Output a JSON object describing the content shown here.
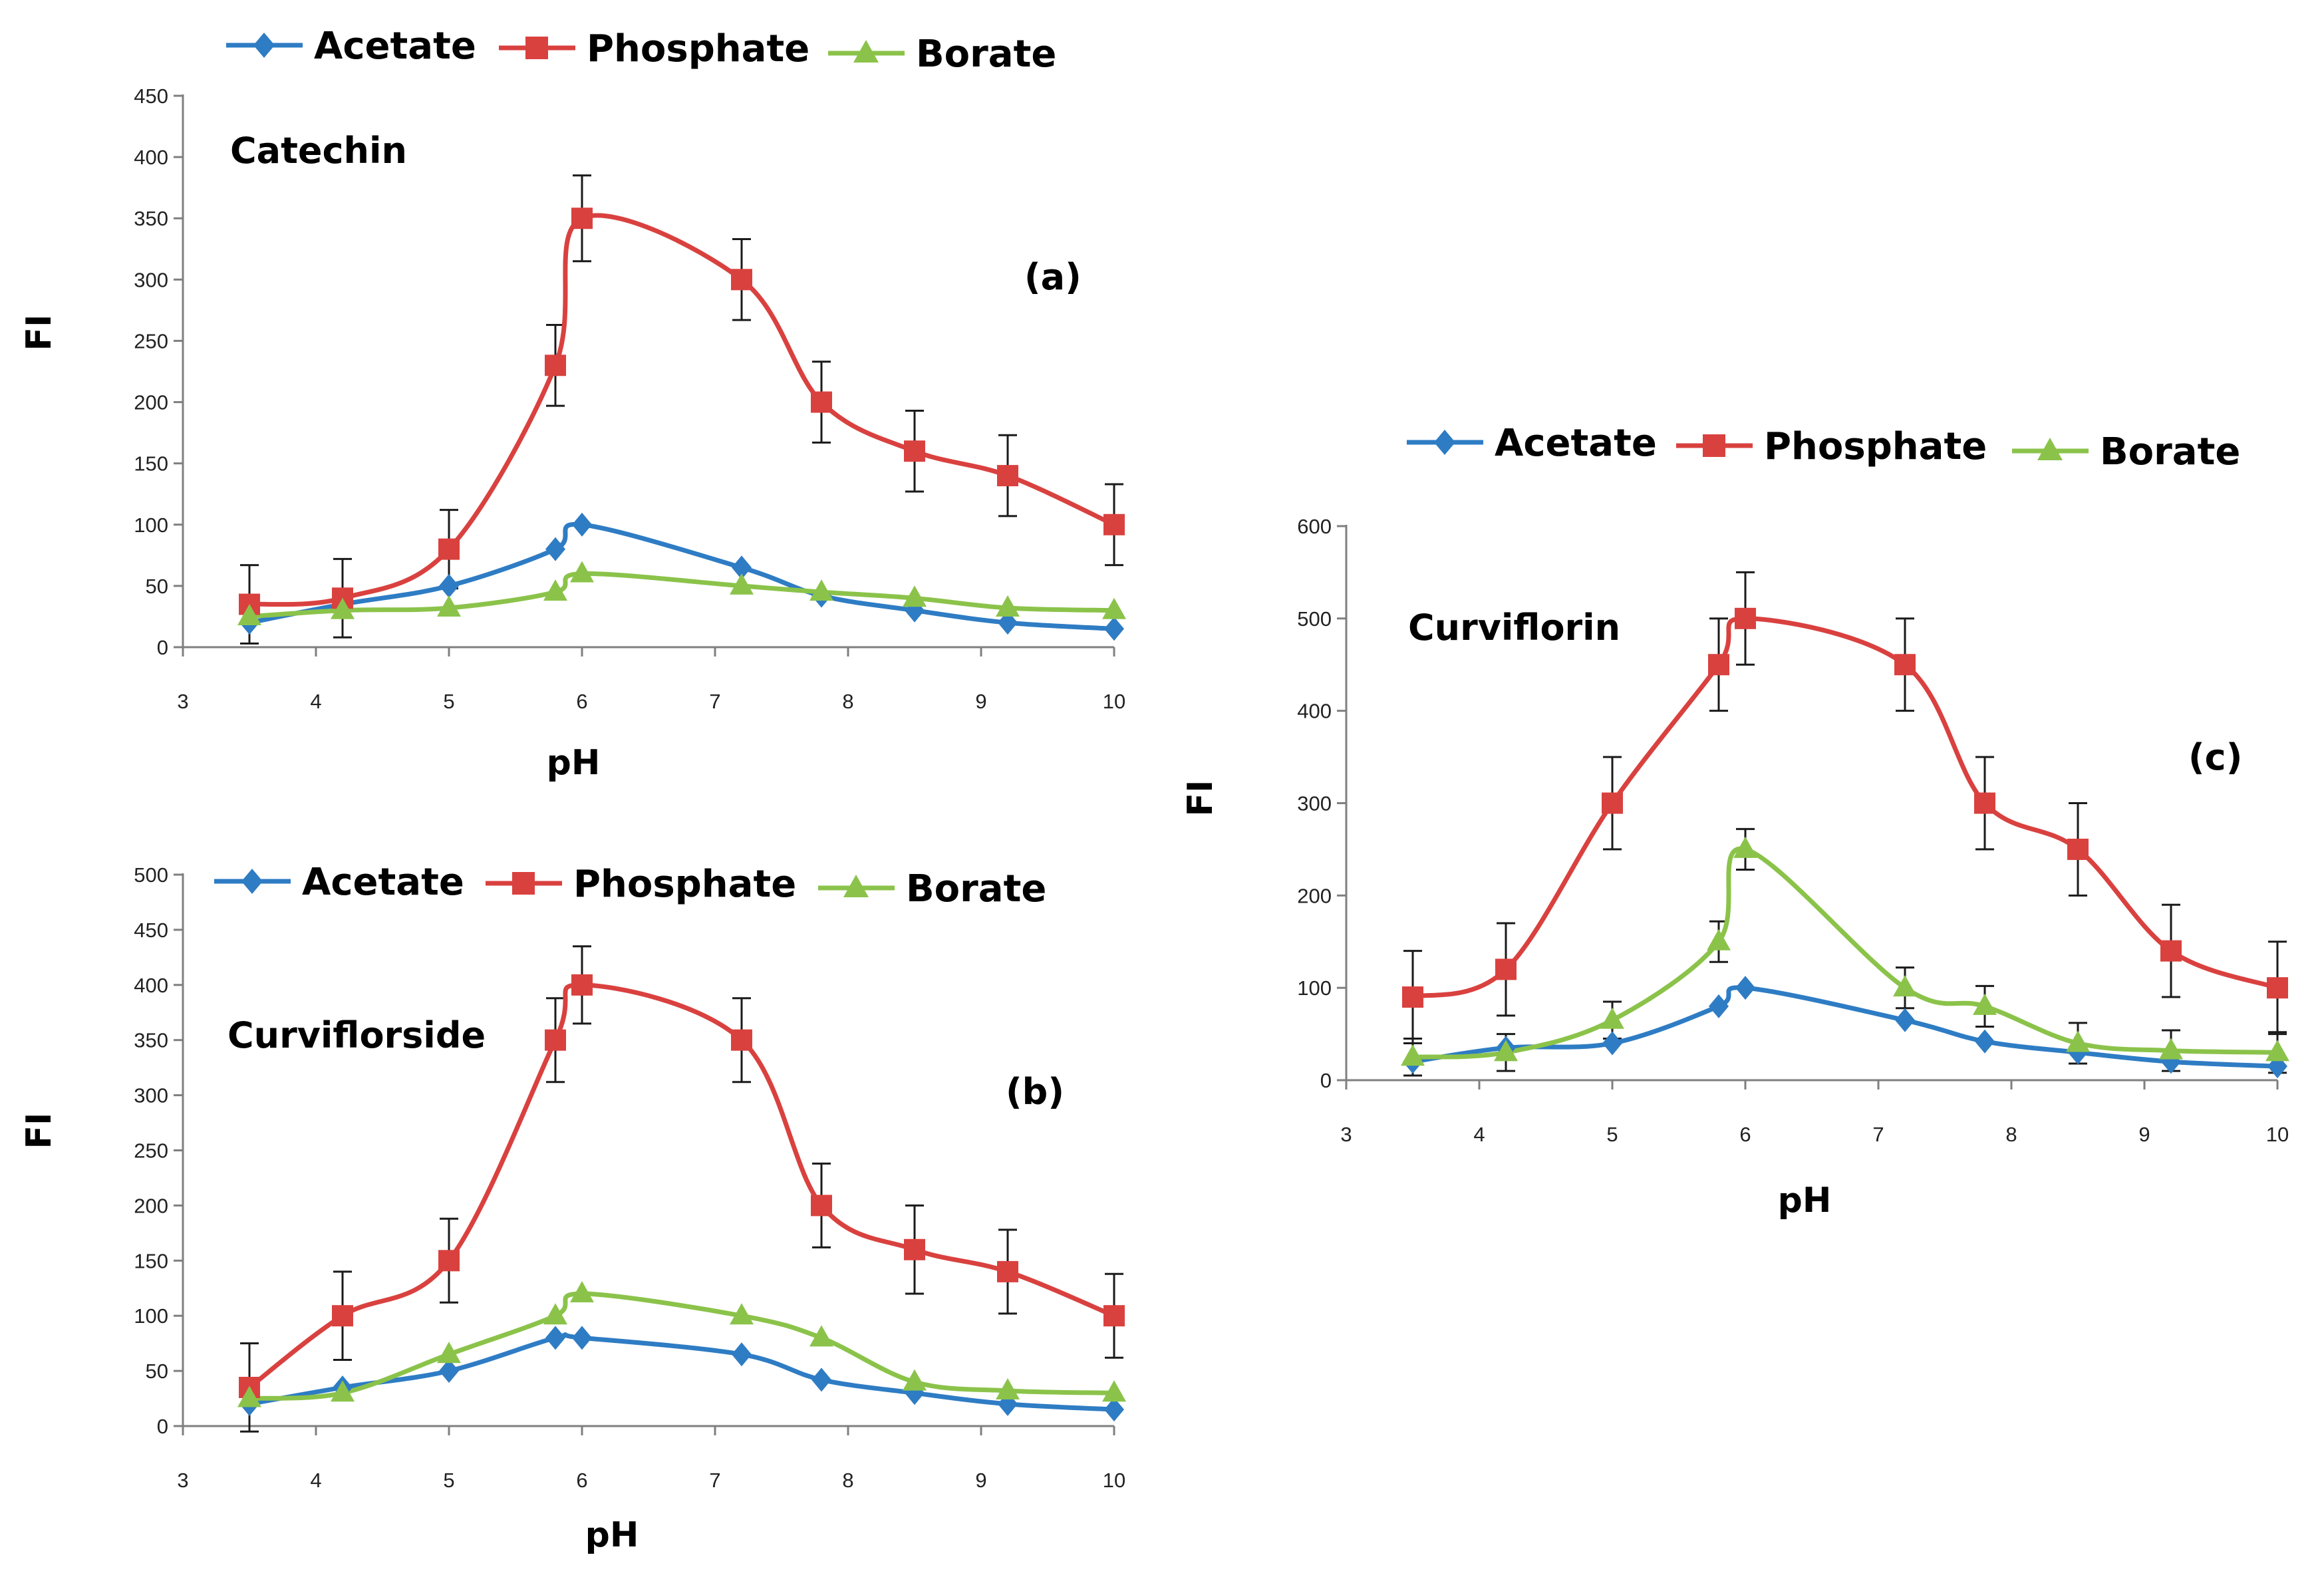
{
  "chart_data": [
    {
      "type": "line",
      "panel_label": "(a)",
      "compound": "Catechin",
      "xlabel": "pH",
      "ylabel": "FI",
      "xlim": [
        3,
        10
      ],
      "ylim": [
        0,
        450
      ],
      "x_ticks": [
        3,
        4,
        5,
        6,
        7,
        8,
        9,
        10
      ],
      "y_ticks": [
        0,
        50,
        100,
        150,
        200,
        250,
        300,
        350,
        400,
        450
      ],
      "x": [
        3.5,
        4.2,
        5.0,
        5.8,
        6.0,
        7.2,
        7.8,
        8.5,
        9.2,
        10.0
      ],
      "legend": [
        "Acetate",
        "Phosphate",
        "Borate"
      ],
      "series": [
        {
          "name": "Acetate",
          "color": "#2E7CC4",
          "marker": "diamond",
          "values": [
            20,
            35,
            50,
            80,
            100,
            65,
            42,
            30,
            20,
            15
          ]
        },
        {
          "name": "Phosphate",
          "color": "#D9413F",
          "marker": "square",
          "values": [
            35,
            40,
            80,
            230,
            350,
            300,
            200,
            160,
            140,
            100
          ],
          "error": [
            32,
            32,
            32,
            33,
            35,
            33,
            33,
            33,
            33,
            33
          ]
        },
        {
          "name": "Borate",
          "color": "#8BC34A",
          "marker": "triangle",
          "values": [
            25,
            30,
            32,
            45,
            60,
            50,
            45,
            40,
            32,
            30
          ]
        }
      ]
    },
    {
      "type": "line",
      "panel_label": "(b)",
      "compound": "Curviflorside",
      "xlabel": "pH",
      "ylabel": "FI",
      "xlim": [
        3,
        10
      ],
      "ylim": [
        0,
        500
      ],
      "x_ticks": [
        3,
        4,
        5,
        6,
        7,
        8,
        9,
        10
      ],
      "y_ticks": [
        0,
        50,
        100,
        150,
        200,
        250,
        300,
        350,
        400,
        450,
        500
      ],
      "x": [
        3.5,
        4.2,
        5.0,
        5.8,
        6.0,
        7.2,
        7.8,
        8.5,
        9.2,
        10.0
      ],
      "legend": [
        "Acetate",
        "Phosphate",
        "Borate"
      ],
      "series": [
        {
          "name": "Acetate",
          "color": "#2E7CC4",
          "marker": "diamond",
          "values": [
            20,
            35,
            50,
            80,
            80,
            65,
            42,
            30,
            20,
            15
          ]
        },
        {
          "name": "Phosphate",
          "color": "#D9413F",
          "marker": "square",
          "values": [
            35,
            100,
            150,
            350,
            400,
            350,
            200,
            160,
            140,
            100
          ],
          "error": [
            40,
            40,
            38,
            38,
            35,
            38,
            38,
            40,
            38,
            38
          ]
        },
        {
          "name": "Borate",
          "color": "#8BC34A",
          "marker": "triangle",
          "values": [
            25,
            30,
            65,
            100,
            120,
            100,
            80,
            40,
            32,
            30
          ]
        }
      ]
    },
    {
      "type": "line",
      "panel_label": "(c)",
      "compound": "Curviflorin",
      "xlabel": "pH",
      "ylabel": "FI",
      "xlim": [
        3,
        10
      ],
      "ylim": [
        0,
        600
      ],
      "x_ticks": [
        3,
        4,
        5,
        6,
        7,
        8,
        9,
        10
      ],
      "y_ticks": [
        0,
        100,
        200,
        300,
        400,
        500,
        600
      ],
      "x": [
        3.5,
        4.2,
        5.0,
        5.8,
        6.0,
        7.2,
        7.8,
        8.5,
        9.2,
        10.0
      ],
      "legend": [
        "Acetate",
        "Phosphate",
        "Borate"
      ],
      "series": [
        {
          "name": "Acetate",
          "color": "#2E7CC4",
          "marker": "diamond",
          "values": [
            20,
            35,
            40,
            80,
            100,
            65,
            42,
            30,
            20,
            15
          ]
        },
        {
          "name": "Phosphate",
          "color": "#D9413F",
          "marker": "square",
          "values": [
            90,
            120,
            300,
            450,
            500,
            450,
            300,
            250,
            140,
            100
          ],
          "error": [
            50,
            50,
            50,
            50,
            50,
            50,
            50,
            50,
            50,
            50
          ]
        },
        {
          "name": "Borate",
          "color": "#8BC34A",
          "marker": "triangle",
          "values": [
            25,
            30,
            65,
            150,
            250,
            100,
            80,
            40,
            32,
            30
          ],
          "error": [
            20,
            20,
            20,
            22,
            22,
            22,
            22,
            22,
            22,
            22
          ]
        }
      ]
    }
  ]
}
